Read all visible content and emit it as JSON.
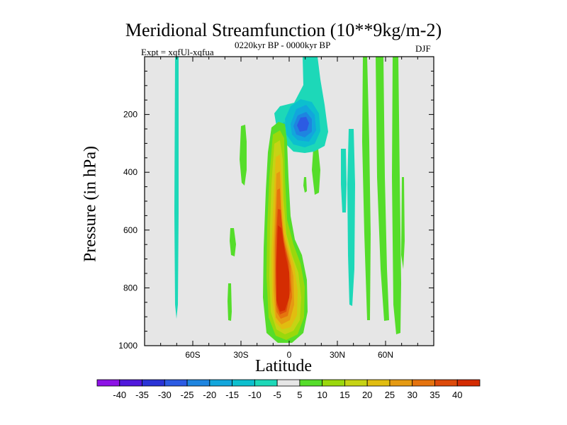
{
  "chart_data": {
    "type": "heatmap",
    "title": "Meridional Streamfunction (10**9kg/m-2)",
    "subtitle_left": "Expt = xqfUl-xqfua",
    "subtitle_center": "0220kyr BP - 0000kyr BP",
    "subtitle_right": "DJF",
    "xlabel": "Latitude",
    "ylabel": "Pressure (in hPa)",
    "xlim": [
      -90,
      90
    ],
    "ylim": [
      1000,
      0
    ],
    "x_ticks": [
      {
        "value": -60,
        "label": "60S"
      },
      {
        "value": -30,
        "label": "30S"
      },
      {
        "value": 0,
        "label": "0"
      },
      {
        "value": 30,
        "label": "30N"
      },
      {
        "value": 60,
        "label": "60N"
      }
    ],
    "y_ticks": [
      200,
      400,
      600,
      800,
      1000
    ],
    "background_color": "#e6e6e6",
    "colorbar": {
      "levels": [
        -40,
        -35,
        -30,
        -25,
        -20,
        -15,
        -10,
        -5,
        5,
        10,
        15,
        20,
        25,
        30,
        35,
        40
      ],
      "colors": [
        "#8d12e6",
        "#5018dc",
        "#2a33d6",
        "#2c5be3",
        "#1e85e0",
        "#12a6dc",
        "#0cbfce",
        "#1dd8b8",
        "#e6e6e6",
        "#55dd2a",
        "#9ad80c",
        "#c6d314",
        "#e1bd10",
        "#e59a12",
        "#e5730e",
        "#dd4a0a",
        "#d42c02"
      ]
    },
    "features": [
      {
        "name": "positive-cell-equatorial",
        "lat_center": -5,
        "pressure_top": 260,
        "pressure_bottom": 990,
        "peak_value": 42
      },
      {
        "name": "negative-cell-upper",
        "lat_center": 5,
        "pressure_top": 60,
        "pressure_bottom": 320,
        "peak_value": -22
      }
    ]
  }
}
